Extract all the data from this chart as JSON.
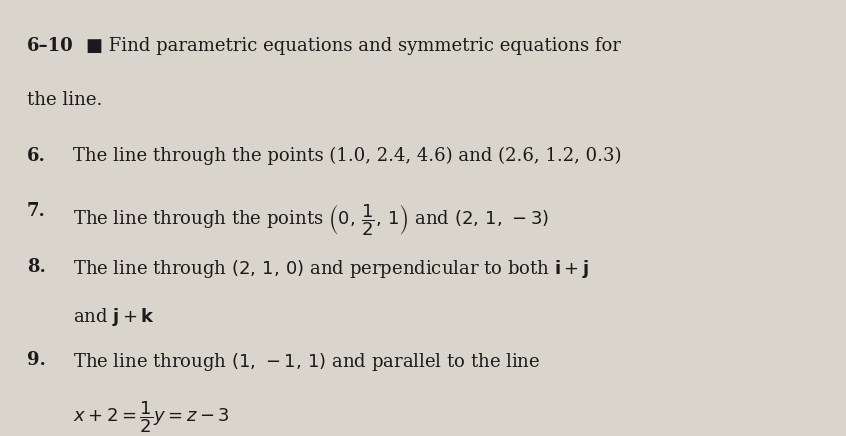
{
  "background_color": "#d9d5cc",
  "text_color": "#1a1a1a",
  "header_bold": "6–10",
  "header_symbol": "■",
  "header_text": " Find parametric equations and symmetric equations for",
  "header_text2": "the line.",
  "items": [
    {
      "number": "6.",
      "bold": true,
      "line1": "The line through the points (1.0, 2.4, 4.6) and (2.6, 1.2, 0.3)"
    },
    {
      "number": "7.",
      "bold": true,
      "line1": "The line through the points $(0, \\tfrac{1}{2}, 1)$ and $(2, 1, -3)$"
    },
    {
      "number": "8.",
      "bold": true,
      "line1": "The line through $(2, 1, 0)$ and perpendicular to both $\\mathbf{i}+\\mathbf{j}$",
      "line2": "and $\\mathbf{j}+\\mathbf{k}$"
    },
    {
      "number": "9.",
      "bold": true,
      "line1": "The line through $(1, -1, 1)$ and parallel to the line",
      "line2": "$x + 2 = \\tfrac{1}{2}y = z - 3$"
    }
  ],
  "figsize": [
    8.46,
    4.36
  ],
  "dpi": 100,
  "font_size_header": 13,
  "font_size_body": 13
}
